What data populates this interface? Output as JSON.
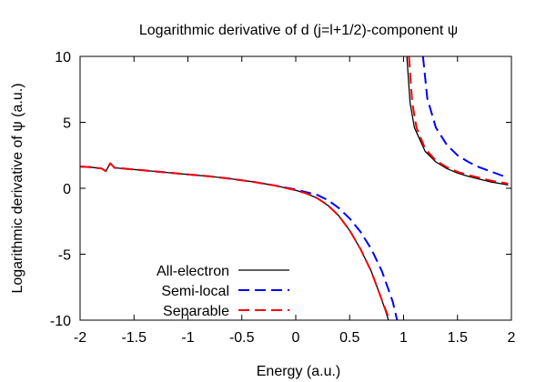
{
  "chart_data": {
    "type": "line",
    "title": "Logarithmic derivative of d (j=l+1/2)-component ψ",
    "xlabel": "Energy (a.u.)",
    "ylabel": "Logarithmic derivative of ψ (a.u.)",
    "xlim": [
      -2,
      2
    ],
    "ylim": [
      -10,
      10
    ],
    "x_ticks": [
      -2,
      -1.5,
      -1,
      -0.5,
      0,
      0.5,
      1,
      1.5,
      2
    ],
    "x_tick_labels": [
      "-2",
      "-1.5",
      "-1",
      "-0.5",
      "0",
      "0.5",
      "1",
      "1.5",
      "2"
    ],
    "y_ticks": [
      -10,
      -5,
      0,
      5,
      10
    ],
    "y_tick_labels": [
      "-10",
      "-5",
      "0",
      "5",
      "10"
    ],
    "grid": false,
    "legend_position": "bottom-left",
    "series": [
      {
        "name": "All-electron",
        "color": "#000000",
        "dash": "solid",
        "segments": [
          [
            [
              -2.0,
              1.65
            ],
            [
              -1.9,
              1.6
            ],
            [
              -1.8,
              1.5
            ],
            [
              -1.76,
              1.3
            ],
            [
              -1.72,
              1.9
            ],
            [
              -1.68,
              1.55
            ],
            [
              -1.6,
              1.5
            ],
            [
              -1.4,
              1.35
            ],
            [
              -1.2,
              1.2
            ],
            [
              -1.0,
              1.05
            ],
            [
              -0.8,
              0.9
            ],
            [
              -0.6,
              0.72
            ],
            [
              -0.4,
              0.5
            ],
            [
              -0.2,
              0.22
            ],
            [
              0.0,
              -0.15
            ],
            [
              0.1,
              -0.4
            ],
            [
              0.2,
              -0.75
            ],
            [
              0.3,
              -1.3
            ],
            [
              0.4,
              -2.1
            ],
            [
              0.5,
              -3.2
            ],
            [
              0.6,
              -4.6
            ],
            [
              0.7,
              -6.3
            ],
            [
              0.8,
              -8.5
            ],
            [
              0.86,
              -10.0
            ]
          ],
          [
            [
              1.03,
              10.0
            ],
            [
              1.06,
              6.5
            ],
            [
              1.1,
              4.6
            ],
            [
              1.2,
              2.8
            ],
            [
              1.3,
              2.0
            ],
            [
              1.4,
              1.5
            ],
            [
              1.5,
              1.15
            ],
            [
              1.6,
              0.9
            ],
            [
              1.7,
              0.7
            ],
            [
              1.8,
              0.5
            ],
            [
              1.9,
              0.35
            ],
            [
              1.97,
              0.25
            ]
          ]
        ]
      },
      {
        "name": "Semi-local",
        "color": "#0000ff",
        "dash": "dashed",
        "segments": [
          [
            [
              -2.0,
              1.65
            ],
            [
              -1.9,
              1.6
            ],
            [
              -1.8,
              1.5
            ],
            [
              -1.76,
              1.3
            ],
            [
              -1.72,
              1.9
            ],
            [
              -1.68,
              1.55
            ],
            [
              -1.6,
              1.5
            ],
            [
              -1.4,
              1.35
            ],
            [
              -1.2,
              1.2
            ],
            [
              -1.0,
              1.05
            ],
            [
              -0.8,
              0.9
            ],
            [
              -0.6,
              0.72
            ],
            [
              -0.4,
              0.5
            ],
            [
              -0.2,
              0.22
            ],
            [
              0.0,
              -0.1
            ],
            [
              0.2,
              -0.5
            ],
            [
              0.3,
              -0.9
            ],
            [
              0.4,
              -1.5
            ],
            [
              0.5,
              -2.3
            ],
            [
              0.6,
              -3.3
            ],
            [
              0.7,
              -4.6
            ],
            [
              0.8,
              -6.3
            ],
            [
              0.9,
              -8.6
            ],
            [
              0.94,
              -10.0
            ]
          ],
          [
            [
              1.18,
              10.0
            ],
            [
              1.22,
              6.8
            ],
            [
              1.3,
              4.6
            ],
            [
              1.4,
              3.3
            ],
            [
              1.5,
              2.5
            ],
            [
              1.6,
              2.0
            ],
            [
              1.7,
              1.6
            ],
            [
              1.8,
              1.3
            ],
            [
              1.9,
              1.0
            ],
            [
              1.97,
              0.8
            ]
          ]
        ]
      },
      {
        "name": "Separable",
        "color": "#ff0000",
        "dash": "dashed",
        "segments": [
          [
            [
              -2.0,
              1.65
            ],
            [
              -1.9,
              1.6
            ],
            [
              -1.8,
              1.5
            ],
            [
              -1.76,
              1.3
            ],
            [
              -1.72,
              1.9
            ],
            [
              -1.68,
              1.55
            ],
            [
              -1.6,
              1.5
            ],
            [
              -1.4,
              1.35
            ],
            [
              -1.2,
              1.2
            ],
            [
              -1.0,
              1.05
            ],
            [
              -0.8,
              0.9
            ],
            [
              -0.6,
              0.72
            ],
            [
              -0.4,
              0.5
            ],
            [
              -0.2,
              0.22
            ],
            [
              0.0,
              -0.15
            ],
            [
              0.1,
              -0.4
            ],
            [
              0.2,
              -0.75
            ],
            [
              0.3,
              -1.3
            ],
            [
              0.4,
              -2.1
            ],
            [
              0.5,
              -3.2
            ],
            [
              0.6,
              -4.6
            ],
            [
              0.7,
              -6.3
            ],
            [
              0.8,
              -8.5
            ],
            [
              0.87,
              -10.0
            ]
          ],
          [
            [
              1.05,
              10.0
            ],
            [
              1.08,
              6.5
            ],
            [
              1.12,
              4.6
            ],
            [
              1.2,
              3.0
            ],
            [
              1.3,
              2.1
            ],
            [
              1.4,
              1.6
            ],
            [
              1.5,
              1.25
            ],
            [
              1.6,
              1.0
            ],
            [
              1.7,
              0.8
            ],
            [
              1.8,
              0.6
            ],
            [
              1.9,
              0.45
            ],
            [
              1.97,
              0.35
            ]
          ]
        ]
      }
    ]
  }
}
